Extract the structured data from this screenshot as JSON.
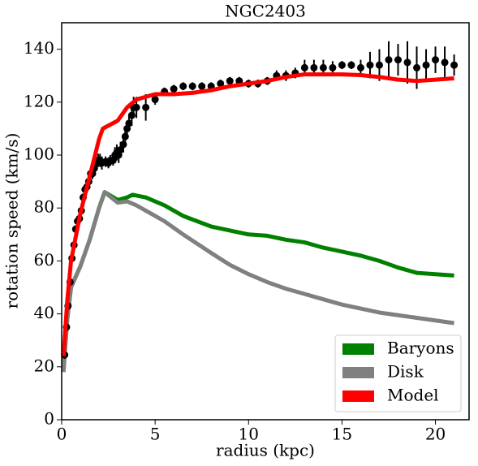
{
  "chart_data": {
    "type": "line",
    "title": "NGC2403",
    "x_label": "radius (kpc)",
    "y_label": "rotation speed (km/s)",
    "xlim": [
      0,
      21.8
    ],
    "ylim": [
      0,
      150
    ],
    "xticks": [
      0,
      5,
      10,
      15,
      20
    ],
    "yticks": [
      0,
      20,
      40,
      60,
      80,
      100,
      120,
      140
    ],
    "legend": "lower right",
    "series": [
      {
        "name": "Baryons",
        "color": "#008000",
        "x": [
          0.1,
          0.3,
          0.5,
          1,
          1.5,
          2,
          2.3,
          3,
          3.5,
          3.8,
          4.5,
          5.5,
          6.5,
          8,
          9,
          10,
          11,
          12,
          13,
          14,
          15,
          16,
          17,
          18,
          19,
          20,
          21
        ],
        "values": [
          20,
          38,
          50,
          58,
          68,
          80,
          86,
          83,
          84,
          85,
          84,
          81,
          77,
          73,
          71.5,
          70,
          69.5,
          68,
          67,
          65,
          63.5,
          62,
          60,
          57.5,
          55.5,
          55,
          54.5
        ]
      },
      {
        "name": "Disk",
        "color": "#808080",
        "x": [
          0.1,
          0.3,
          0.5,
          1,
          1.5,
          2,
          2.3,
          3,
          3.5,
          4,
          5,
          5.5,
          6.5,
          8,
          9,
          10,
          11,
          12,
          13,
          14,
          15,
          16,
          17,
          18,
          19,
          20,
          21
        ],
        "values": [
          18,
          38,
          50,
          58,
          68,
          80,
          86,
          82,
          82.5,
          81,
          77,
          75,
          70,
          63,
          58.5,
          55,
          52,
          49.5,
          47.5,
          45.5,
          43.5,
          42,
          40.5,
          39.5,
          38.5,
          37.5,
          36.5
        ]
      },
      {
        "name": "Model",
        "color": "#ff0000",
        "x": [
          0.1,
          0.3,
          0.5,
          1,
          1.5,
          2,
          2.2,
          3,
          3.5,
          4,
          5,
          6,
          7,
          8,
          9,
          10,
          11,
          12,
          13,
          14,
          15,
          16,
          17,
          18,
          19,
          20,
          21
        ],
        "values": [
          24,
          45,
          60,
          78,
          92,
          106,
          110,
          113,
          118,
          121,
          123,
          123,
          123.5,
          124.5,
          126,
          127,
          128,
          129.5,
          130.5,
          130.5,
          130.5,
          130.2,
          129.5,
          128.5,
          128,
          128.5,
          129
        ]
      },
      {
        "color": "#000000",
        "x": [
          0.16,
          0.26,
          0.34,
          0.45,
          0.55,
          0.66,
          0.75,
          0.85,
          0.95,
          1.05,
          1.15,
          1.25,
          1.35,
          1.45,
          1.55,
          1.65,
          1.75,
          1.85,
          1.95,
          2.05,
          2.15,
          2.35,
          2.5,
          2.6,
          2.75,
          2.85,
          2.95,
          3.05,
          3.15,
          3.3,
          3.4,
          3.5,
          3.6,
          3.75,
          3.85,
          4.0,
          4.5,
          5.0,
          5.5,
          6.0,
          6.5,
          7.0,
          7.5,
          8.0,
          8.5,
          9.0,
          9.5,
          10.0,
          10.5,
          11.0,
          11.5,
          12.0,
          12.5,
          13.0,
          13.5,
          14.0,
          14.5,
          15.0,
          15.5,
          16.0,
          16.5,
          17.0,
          17.5,
          18.0,
          18.5,
          19.0,
          19.5,
          20.0,
          20.5,
          21.0
        ],
        "values": [
          24.5,
          35,
          43,
          52,
          61,
          66,
          72,
          75,
          76,
          79,
          84,
          87,
          88,
          90,
          93,
          93,
          95,
          97,
          98,
          98,
          97,
          97.5,
          97,
          98,
          98,
          100,
          101,
          100,
          102,
          104,
          107,
          110,
          112,
          115,
          118,
          118,
          118,
          121,
          124,
          125,
          126,
          126,
          126,
          126,
          127,
          128,
          128,
          127,
          127,
          128,
          130,
          130,
          131,
          133,
          133,
          133,
          133,
          134,
          134,
          133,
          134,
          134,
          136,
          136,
          135,
          133,
          134,
          136,
          135,
          134
        ],
        "errors": [
          1.5,
          1.5,
          1.5,
          1.5,
          1.5,
          1.5,
          1.5,
          1.5,
          1.5,
          1.5,
          1.5,
          1.5,
          1.5,
          1.5,
          2,
          2,
          2,
          2,
          2.5,
          2.5,
          2.5,
          2,
          2,
          2,
          2,
          3,
          3,
          3,
          3,
          3,
          3,
          3,
          3,
          4,
          4,
          4,
          5,
          2,
          1.5,
          1.5,
          1.5,
          1.5,
          1.5,
          1.5,
          1.5,
          1.5,
          1.5,
          1.5,
          1.5,
          1.5,
          2,
          2,
          2,
          3,
          3,
          3,
          2.5,
          1.5,
          1.5,
          3,
          5,
          6,
          7,
          6,
          8,
          8,
          6,
          5,
          6,
          4
        ]
      }
    ]
  }
}
